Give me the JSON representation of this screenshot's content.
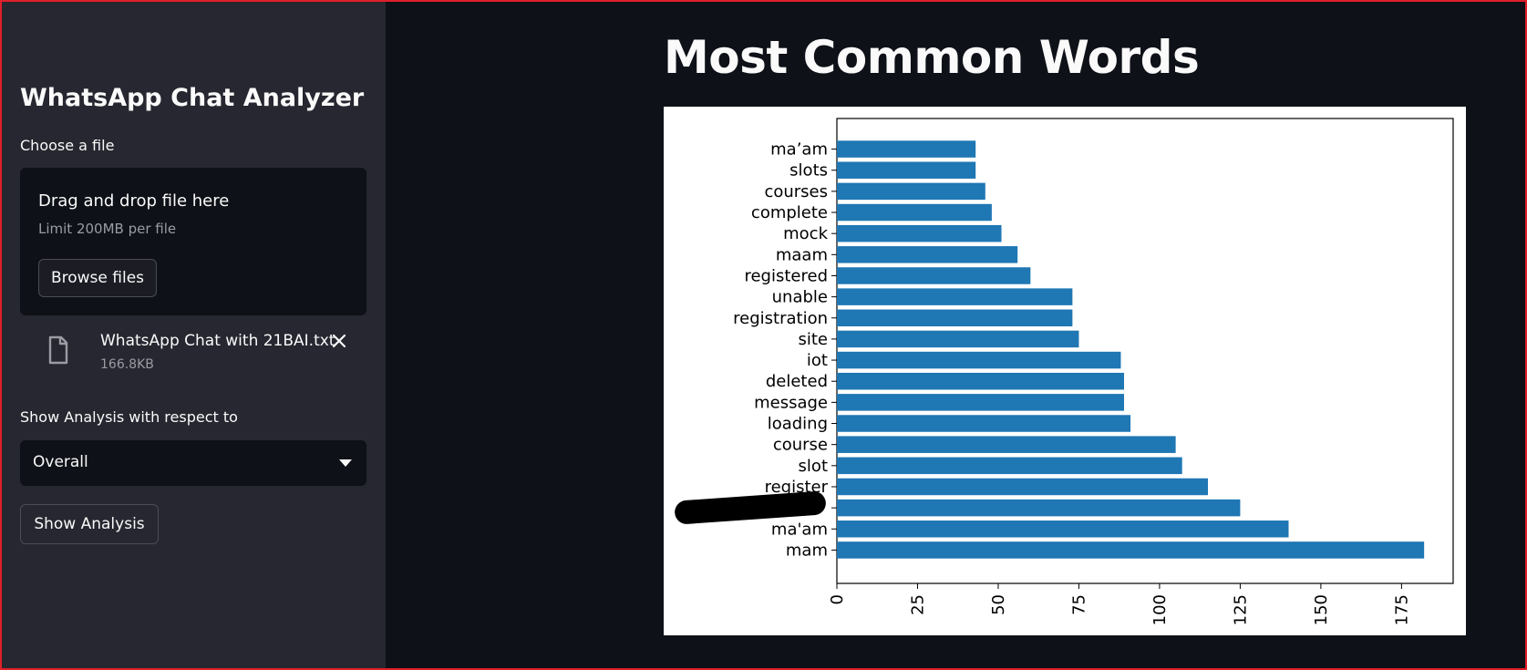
{
  "sidebar": {
    "title": "WhatsApp Chat Analyzer",
    "file_label": "Choose a file",
    "dropzone": {
      "title": "Drag and drop file here",
      "limit": "Limit 200MB per file",
      "browse_label": "Browse files"
    },
    "uploaded_file": {
      "name": "WhatsApp Chat with 21BAI.txt",
      "size": "166.8KB",
      "icon": "file-icon"
    },
    "analysis_label": "Show Analysis with respect to",
    "select": {
      "value": "Overall"
    },
    "show_button": "Show Analysis"
  },
  "main": {
    "title": "Most Common Words"
  },
  "colors": {
    "sidebar_bg": "#262730",
    "main_bg": "#0e1117",
    "bar": "#1f77b4",
    "frame": "#e0202a"
  },
  "chart_data": {
    "type": "bar",
    "orientation": "horizontal",
    "categories": [
      "mam",
      "ma'am",
      "",
      "register",
      "slot",
      "course",
      "loading",
      "message",
      "deleted",
      "iot",
      "site",
      "registration",
      "unable",
      "registered",
      "maam",
      "mock",
      "complete",
      "courses",
      "slots",
      "ma’am"
    ],
    "values": [
      182,
      140,
      125,
      115,
      107,
      105,
      91,
      89,
      89,
      88,
      75,
      73,
      73,
      60,
      56,
      51,
      48,
      46,
      43,
      43
    ],
    "xticks": [
      0,
      25,
      50,
      75,
      100,
      125,
      150,
      175
    ],
    "xlim": [
      0,
      191
    ],
    "grid": false,
    "legend": false
  }
}
